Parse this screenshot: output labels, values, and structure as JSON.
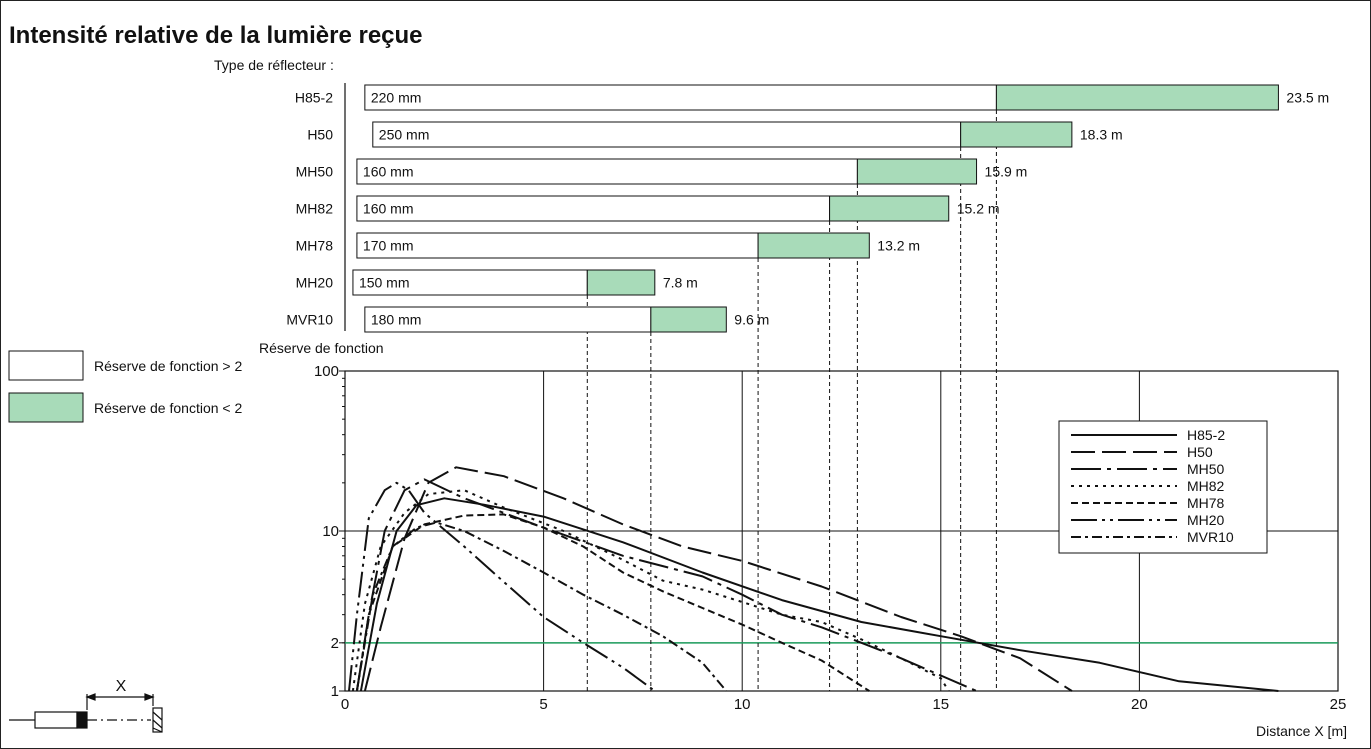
{
  "title": "Intensité relative de la lumière reçue",
  "reflector_heading": "Type de réflecteur :",
  "legend_boxes": {
    "above": "Réserve de fonction > 2",
    "below": "Réserve de fonction < 2",
    "above_color": "#ffffff",
    "below_color": "#a8dbb9"
  },
  "reflectors": [
    {
      "name": "H85-2",
      "size": "220 mm",
      "start": 0.5,
      "threshold": 16.4,
      "max": 23.5,
      "max_label": "23.5 m"
    },
    {
      "name": "H50",
      "size": "250 mm",
      "start": 0.7,
      "threshold": 15.5,
      "max": 18.3,
      "max_label": "18.3 m"
    },
    {
      "name": "MH50",
      "size": "160 mm",
      "start": 0.3,
      "threshold": 12.9,
      "max": 15.9,
      "max_label": "15.9 m"
    },
    {
      "name": "MH82",
      "size": "160 mm",
      "start": 0.3,
      "threshold": 12.2,
      "max": 15.2,
      "max_label": "15.2 m"
    },
    {
      "name": "MH78",
      "size": "170 mm",
      "start": 0.3,
      "threshold": 10.4,
      "max": 13.2,
      "max_label": "13.2 m"
    },
    {
      "name": "MH20",
      "size": "150 mm",
      "start": 0.2,
      "threshold": 6.1,
      "max": 7.8,
      "max_label": "7.8 m"
    },
    {
      "name": "MVR10",
      "size": "180 mm",
      "start": 0.5,
      "threshold": 7.7,
      "max": 9.6,
      "max_label": "9.6 m"
    }
  ],
  "chart_data": {
    "type": "line",
    "ylabel": "Réserve de fonction",
    "xlabel": "Distance X [m]",
    "xlim": [
      0,
      25
    ],
    "ylim": [
      1,
      100
    ],
    "y_scale": "log",
    "x_ticks": [
      0,
      5,
      10,
      15,
      20,
      25
    ],
    "y_ticks": [
      1,
      2,
      10,
      100
    ],
    "threshold_line": {
      "value": 2,
      "color": "#1a9a5a"
    },
    "legend_position": "right",
    "series": [
      {
        "name": "H85-2",
        "dash": "",
        "points": [
          [
            0.4,
            1
          ],
          [
            0.8,
            3.5
          ],
          [
            1.3,
            10
          ],
          [
            1.8,
            14.5
          ],
          [
            2.5,
            16
          ],
          [
            3.5,
            14.6
          ],
          [
            5,
            12.3
          ],
          [
            7,
            8.5
          ],
          [
            9,
            5.5
          ],
          [
            11,
            3.7
          ],
          [
            13,
            2.7
          ],
          [
            15,
            2.2
          ],
          [
            17,
            1.8
          ],
          [
            19,
            1.5
          ],
          [
            21,
            1.15
          ],
          [
            23.5,
            1
          ]
        ]
      },
      {
        "name": "H50",
        "dash": "24 7",
        "points": [
          [
            0.5,
            1
          ],
          [
            0.9,
            2.5
          ],
          [
            1.5,
            9
          ],
          [
            2.1,
            20
          ],
          [
            2.8,
            25
          ],
          [
            4,
            22
          ],
          [
            5.5,
            16
          ],
          [
            7,
            11
          ],
          [
            8.5,
            8
          ],
          [
            10,
            6.5
          ],
          [
            12,
            4.5
          ],
          [
            14,
            2.9
          ],
          [
            15.5,
            2.2
          ],
          [
            17,
            1.6
          ],
          [
            18.3,
            1
          ]
        ]
      },
      {
        "name": "MH50",
        "dash": "30 6 4 6",
        "points": [
          [
            0.3,
            1
          ],
          [
            0.6,
            3
          ],
          [
            1,
            10
          ],
          [
            1.5,
            18
          ],
          [
            2,
            21
          ],
          [
            3,
            16
          ],
          [
            5,
            10.5
          ],
          [
            7,
            7
          ],
          [
            9,
            5.2
          ],
          [
            10,
            4
          ],
          [
            11,
            3
          ],
          [
            12,
            2.5
          ],
          [
            13,
            2
          ],
          [
            14,
            1.6
          ],
          [
            15,
            1.25
          ],
          [
            15.9,
            1
          ]
        ]
      },
      {
        "name": "MH82",
        "dash": "3 5",
        "points": [
          [
            0.2,
            1
          ],
          [
            0.5,
            3.5
          ],
          [
            0.9,
            8
          ],
          [
            1.5,
            13
          ],
          [
            2.1,
            17
          ],
          [
            3,
            18
          ],
          [
            4,
            14
          ],
          [
            5.5,
            10
          ],
          [
            7,
            6.6
          ],
          [
            8,
            4.9
          ],
          [
            9,
            4.3
          ],
          [
            10,
            3.6
          ],
          [
            11,
            3
          ],
          [
            12,
            2.7
          ],
          [
            13,
            2.1
          ],
          [
            14,
            1.6
          ],
          [
            15,
            1.2
          ],
          [
            15.2,
            1
          ]
        ]
      },
      {
        "name": "MH78",
        "dash": "7 4",
        "points": [
          [
            0.3,
            1
          ],
          [
            0.6,
            3
          ],
          [
            1.2,
            8
          ],
          [
            2,
            11
          ],
          [
            3,
            12.5
          ],
          [
            4,
            12.7
          ],
          [
            5,
            10.5
          ],
          [
            6,
            8
          ],
          [
            7,
            5.5
          ],
          [
            8,
            4.2
          ],
          [
            9,
            3.3
          ],
          [
            10,
            2.6
          ],
          [
            11,
            2
          ],
          [
            12,
            1.55
          ],
          [
            13.2,
            1
          ]
        ]
      },
      {
        "name": "MH20",
        "dash": "26 5 3 5 3 5",
        "points": [
          [
            0.1,
            1
          ],
          [
            0.3,
            3
          ],
          [
            0.6,
            12
          ],
          [
            1,
            18
          ],
          [
            1.3,
            20
          ],
          [
            1.6,
            18
          ],
          [
            2,
            13
          ],
          [
            3,
            8
          ],
          [
            4,
            4.8
          ],
          [
            5,
            2.9
          ],
          [
            6,
            2
          ],
          [
            7,
            1.4
          ],
          [
            7.8,
            1
          ]
        ]
      },
      {
        "name": "MVR10",
        "dash": "10 4 3 4",
        "points": [
          [
            0.3,
            1
          ],
          [
            0.7,
            4
          ],
          [
            1.2,
            8
          ],
          [
            1.8,
            10.5
          ],
          [
            2.3,
            11.3
          ],
          [
            3,
            10
          ],
          [
            4,
            7.5
          ],
          [
            5,
            5.5
          ],
          [
            6,
            4
          ],
          [
            7,
            3
          ],
          [
            8,
            2.2
          ],
          [
            9,
            1.5
          ],
          [
            9.6,
            1
          ]
        ]
      }
    ]
  }
}
